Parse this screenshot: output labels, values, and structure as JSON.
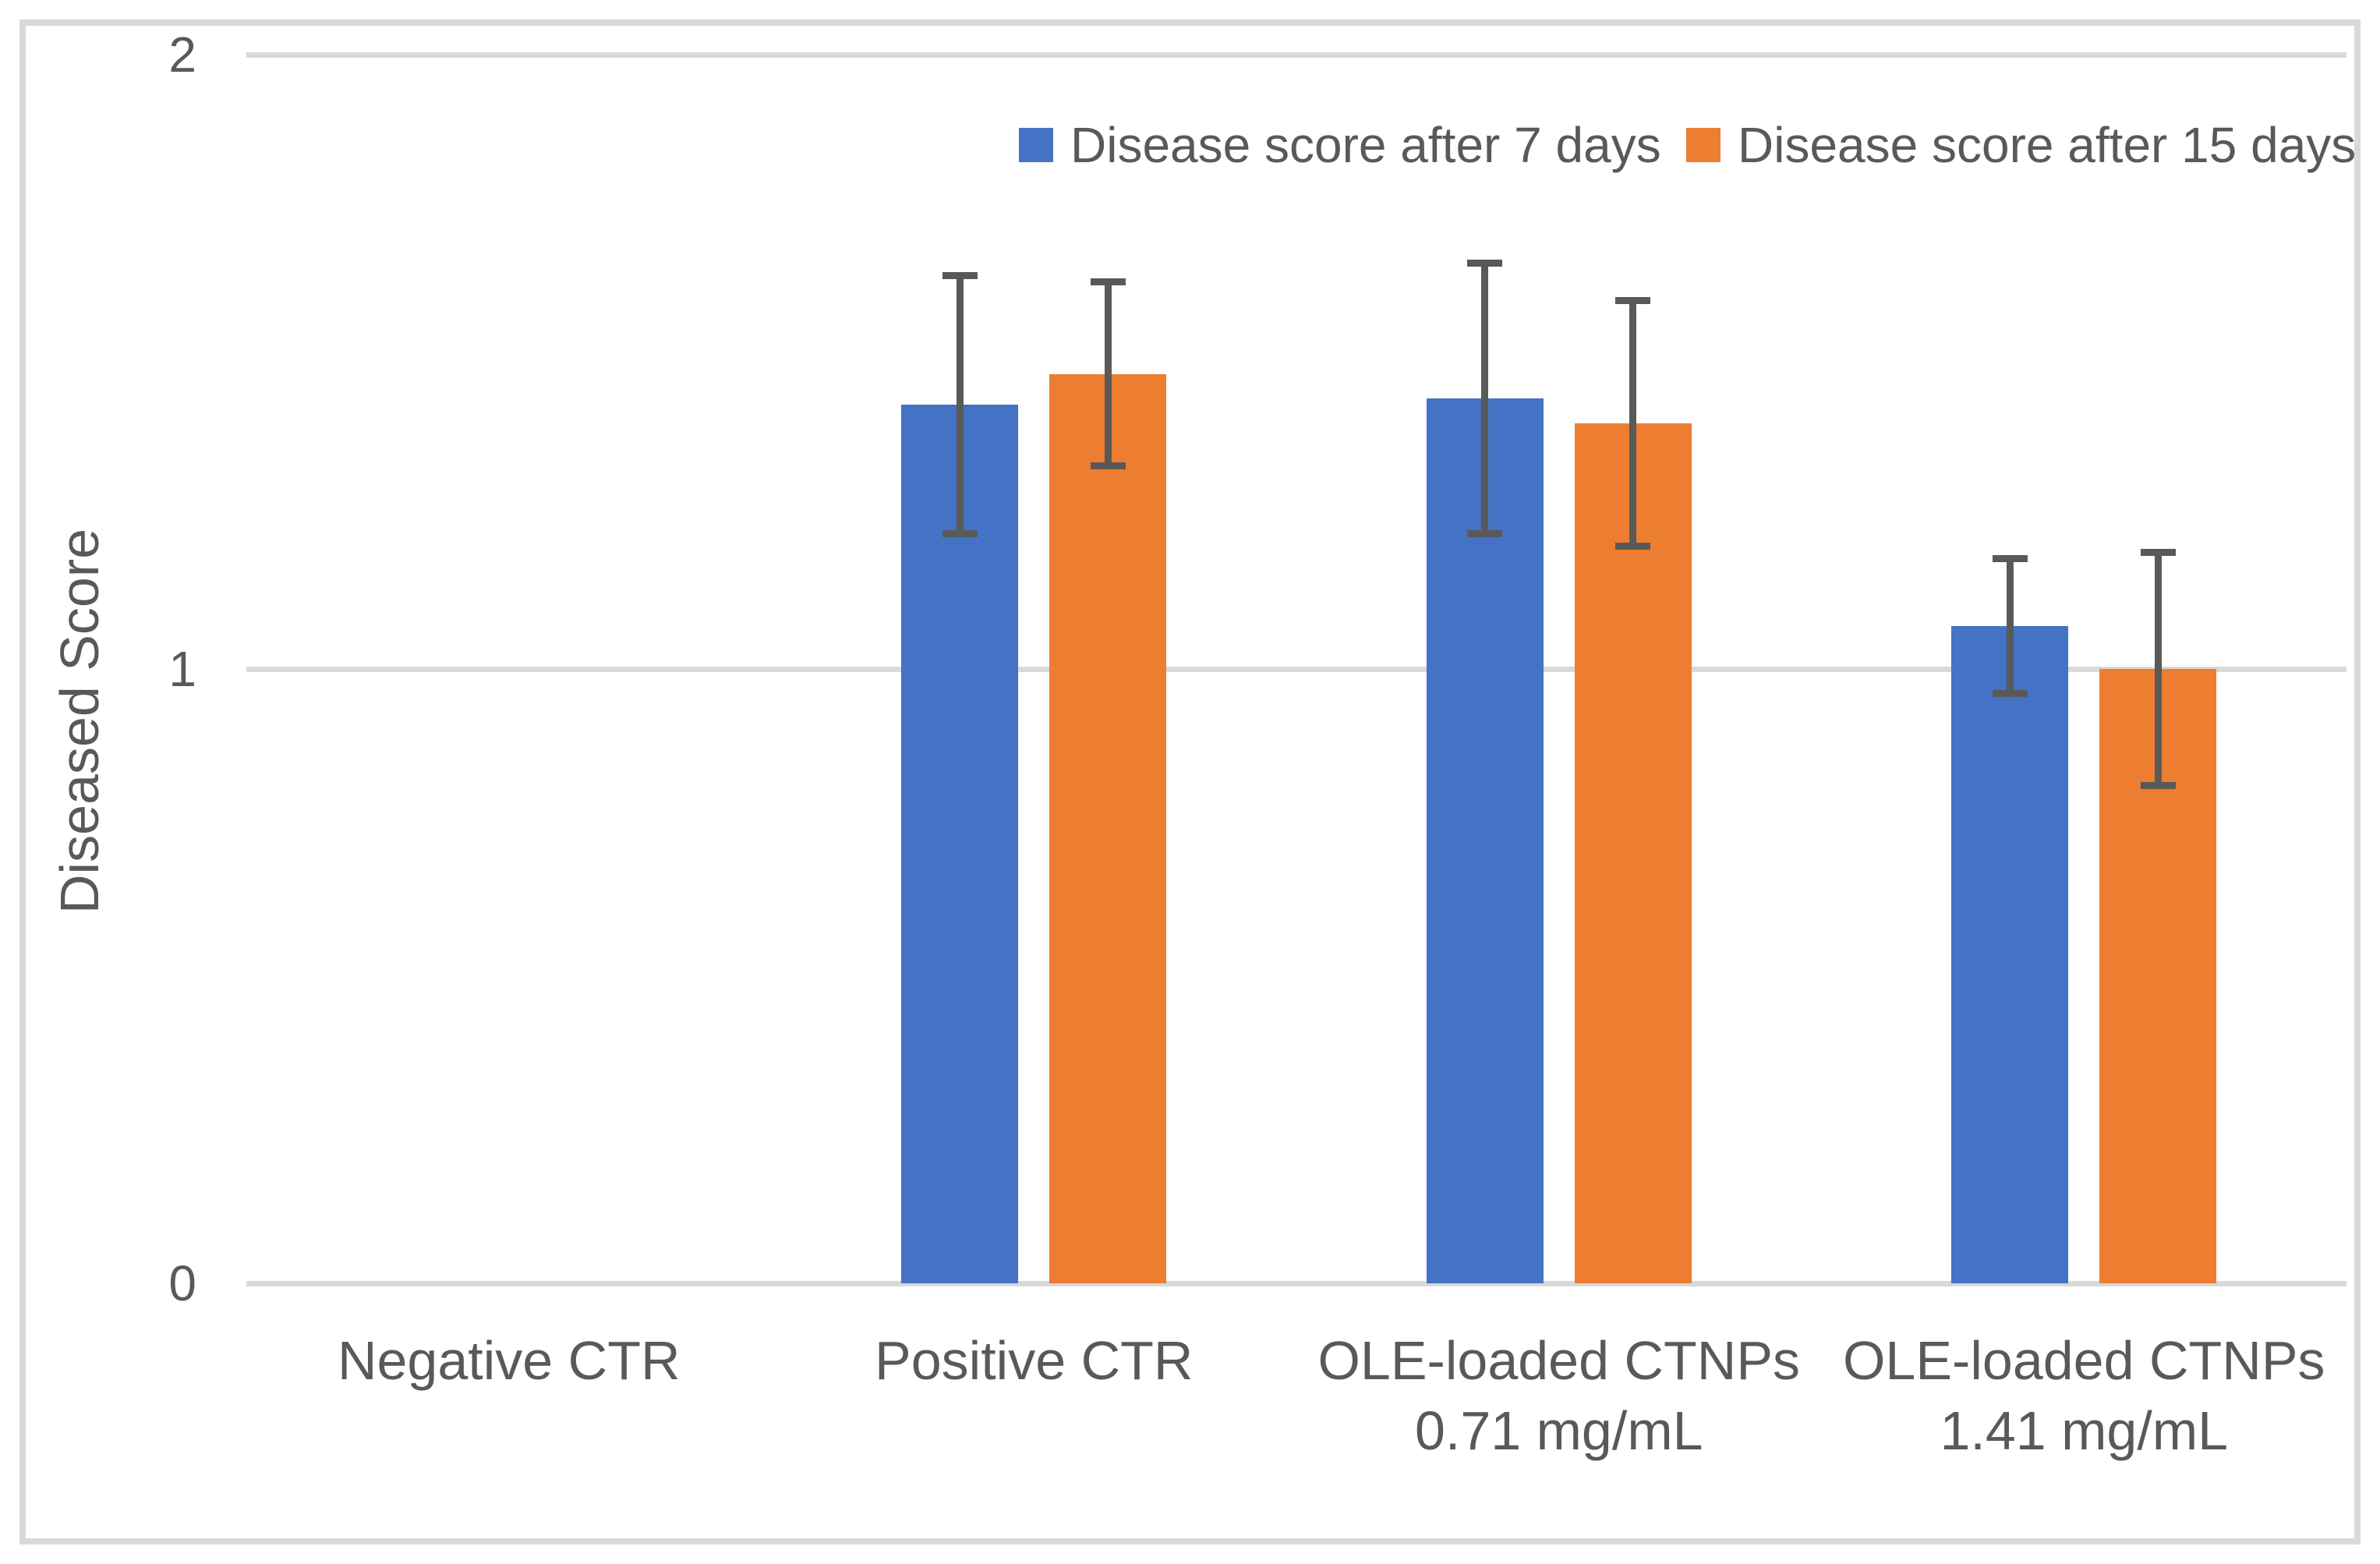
{
  "chart_data": {
    "type": "bar",
    "title": "",
    "ylabel": "Diseased Score",
    "xlabel": "",
    "categories": [
      [
        "Negative CTR"
      ],
      [
        "Positive CTR"
      ],
      [
        "OLE-loaded CTNPs",
        "0.71 mg/mL"
      ],
      [
        "OLE-loaded CTNPs",
        "1.41 mg/mL"
      ]
    ],
    "series": [
      {
        "name": "Disease score after 7 days",
        "color": "#4472C4",
        "values": [
          0,
          1.43,
          1.44,
          1.07
        ],
        "errors": [
          0,
          0.21,
          0.22,
          0.11
        ]
      },
      {
        "name": "Disease score after 15 days",
        "color": "#ED7D31",
        "values": [
          0,
          1.48,
          1.4,
          1.0
        ],
        "errors": [
          0,
          0.15,
          0.2,
          0.19
        ]
      }
    ],
    "ylim": [
      0,
      2
    ],
    "yticks": [
      0,
      1,
      2
    ],
    "grid": true,
    "legend_position": "top"
  },
  "styles": {
    "background": "#FFFFFF",
    "border_color": "#D9D9D9",
    "gridline_color": "#D9D9D9",
    "text_color": "#595959",
    "error_bar_color": "#595959",
    "series_colors": [
      "#4472C4",
      "#ED7D31"
    ]
  }
}
